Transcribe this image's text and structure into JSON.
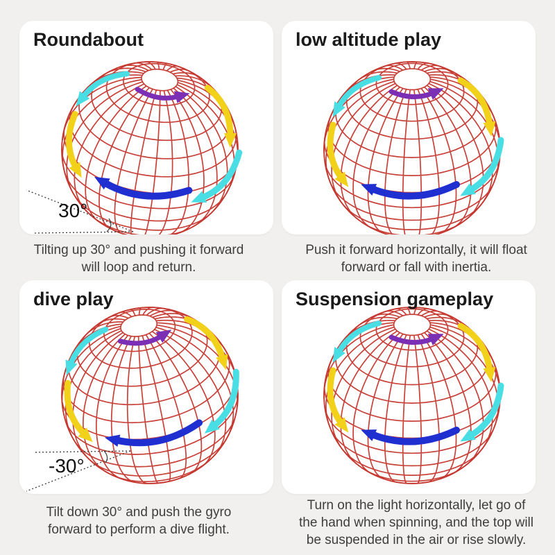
{
  "page": {
    "kind": "product-instruction-sheet",
    "background": "#f1f0ee",
    "card_background": "#ffffff"
  },
  "colors": {
    "title_text": "#1a1a1a",
    "caption_text": "#3e3e3e",
    "wireframe_red": "#c5372e",
    "angle_line": "#3a3a3a",
    "angle_text": "#111111"
  },
  "orb_arrows": [
    {
      "name": "pole-spin-arrow",
      "color": "#7b2fb5"
    },
    {
      "name": "left-upper-spin-arrow",
      "color": "#49dde4"
    },
    {
      "name": "left-side-spin-arrow",
      "color": "#f2d11b"
    },
    {
      "name": "bottom-forward-arrow",
      "color": "#1f2fd0"
    },
    {
      "name": "right-side-spin-arrow",
      "color": "#49dde4"
    },
    {
      "name": "right-upper-spin-arrow",
      "color": "#f2d11b"
    }
  ],
  "panels": [
    {
      "title": "Roundabout",
      "caption": "Tilting up 30° and pushing it forward\nwill loop and return.",
      "angle_label": "30°",
      "angle_degrees": 30,
      "orb_tilt_degrees": 8
    },
    {
      "title": "low altitude play",
      "caption": "Push it forward horizontally, it will float\nforward or fall with inertia.",
      "orb_tilt_degrees": 0
    },
    {
      "title": "dive play",
      "caption": "Tilt down 30° and push the gyro\nforward to perform a dive flight.",
      "angle_label": "-30°",
      "angle_degrees": -30,
      "orb_tilt_degrees": -9
    },
    {
      "title": "Suspension gameplay",
      "caption": "Turn on the light horizontally, let go of\nthe hand when spinning, and the top will\nbe suspended in the air or rise slowly.",
      "orb_tilt_degrees": 0
    }
  ]
}
